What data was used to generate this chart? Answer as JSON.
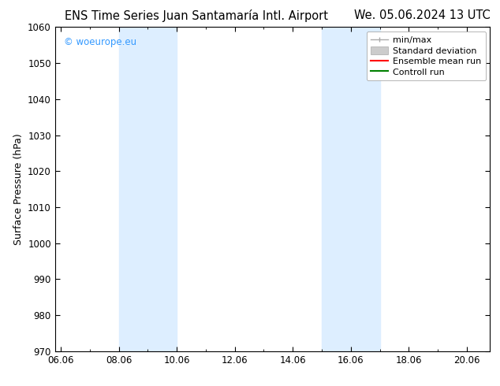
{
  "title_left": "ENS Time Series Juan Santamaría Intl. Airport",
  "title_right": "We. 05.06.2024 13 UTC",
  "ylabel": "Surface Pressure (hPa)",
  "xlabel": "",
  "ylim": [
    970,
    1060
  ],
  "yticks": [
    970,
    980,
    990,
    1000,
    1010,
    1020,
    1030,
    1040,
    1050,
    1060
  ],
  "xtick_labels": [
    "06.06",
    "08.06",
    "10.06",
    "12.06",
    "14.06",
    "16.06",
    "18.06",
    "20.06"
  ],
  "xtick_positions": [
    0,
    2,
    4,
    6,
    8,
    10,
    12,
    14
  ],
  "xlim": [
    -0.2,
    14.8
  ],
  "shaded_bands": [
    {
      "x_start": 2,
      "x_end": 4,
      "color": "#ddeeff"
    },
    {
      "x_start": 9,
      "x_end": 11,
      "color": "#ddeeff"
    }
  ],
  "watermark_text": "© woeurope.eu",
  "watermark_color": "#3399ff",
  "bg_color": "#ffffff",
  "plot_bg_color": "#ffffff",
  "title_fontsize": 10.5,
  "axis_label_fontsize": 9,
  "tick_fontsize": 8.5,
  "legend_fontsize": 8
}
